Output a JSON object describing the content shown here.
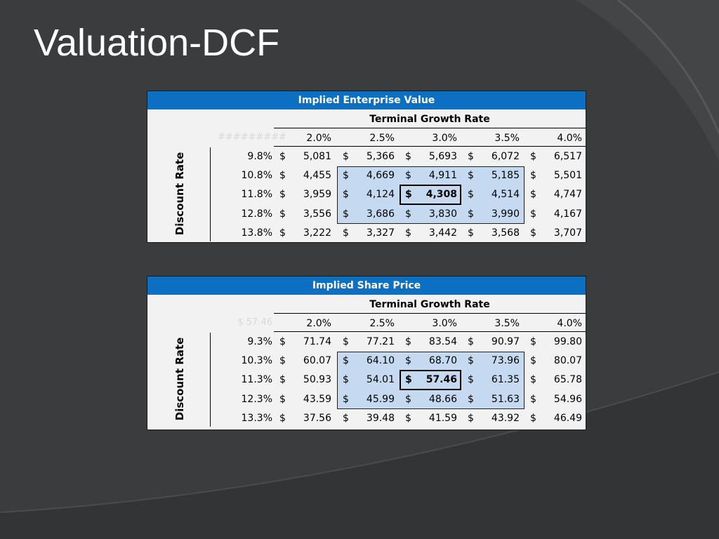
{
  "slide": {
    "title": "Valuation-DCF"
  },
  "tables": [
    {
      "header": "Implied Enterprise Value",
      "subheader": "Terminal Growth Rate",
      "corner": "#########",
      "row_axis_label": "Discount Rate",
      "growth_rates": [
        "2.0%",
        "2.5%",
        "3.0%",
        "3.5%",
        "4.0%"
      ],
      "rows": [
        {
          "rate": "9.8%",
          "values": [
            "5,081",
            "5,366",
            "5,693",
            "6,072",
            "6,517"
          ]
        },
        {
          "rate": "10.8%",
          "values": [
            "4,455",
            "4,669",
            "4,911",
            "5,185",
            "5,501"
          ]
        },
        {
          "rate": "11.8%",
          "values": [
            "3,959",
            "4,124",
            "4,308",
            "4,514",
            "4,747"
          ]
        },
        {
          "rate": "12.8%",
          "values": [
            "3,556",
            "3,686",
            "3,830",
            "3,990",
            "4,167"
          ]
        },
        {
          "rate": "13.8%",
          "values": [
            "3,222",
            "3,327",
            "3,442",
            "3,568",
            "3,707"
          ]
        }
      ]
    },
    {
      "header": "Implied Share Price",
      "subheader": "Terminal Growth Rate",
      "corner": "$    57.46",
      "row_axis_label": "Discount Rate",
      "growth_rates": [
        "2.0%",
        "2.5%",
        "3.0%",
        "3.5%",
        "4.0%"
      ],
      "rows": [
        {
          "rate": "9.3%",
          "values": [
            "71.74",
            "77.21",
            "83.54",
            "90.97",
            "99.80"
          ]
        },
        {
          "rate": "10.3%",
          "values": [
            "60.07",
            "64.10",
            "68.70",
            "73.96",
            "80.07"
          ]
        },
        {
          "rate": "11.3%",
          "values": [
            "50.93",
            "54.01",
            "57.46",
            "61.35",
            "65.78"
          ]
        },
        {
          "rate": "12.3%",
          "values": [
            "43.59",
            "45.99",
            "48.66",
            "51.63",
            "54.96"
          ]
        },
        {
          "rate": "13.3%",
          "values": [
            "37.56",
            "39.48",
            "41.59",
            "43.92",
            "46.49"
          ]
        }
      ]
    }
  ],
  "currency_symbol": "$",
  "colors": {
    "background": "#3b3c3e",
    "header_blue": "#0d6fc1",
    "highlight_band": "#c5d9f1",
    "panel": "#f2f2f2"
  }
}
